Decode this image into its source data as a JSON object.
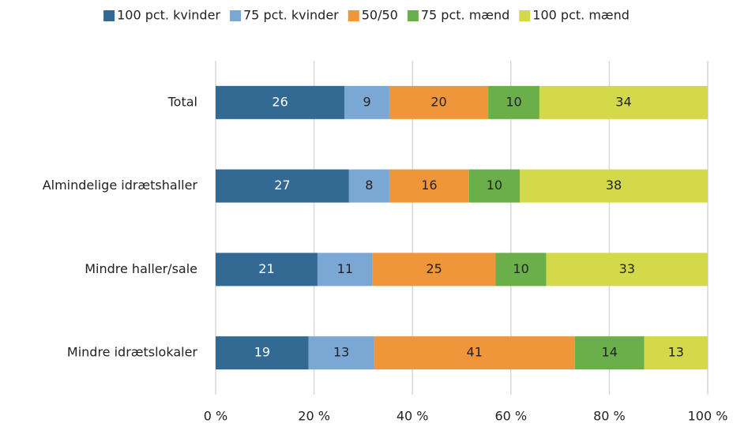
{
  "chart_data": {
    "type": "stacked_barh",
    "categories": [
      "Total",
      "Almindelige idrætshaller",
      "Mindre haller/sale",
      "Mindre idrætslokaler"
    ],
    "series": [
      {
        "name": "100 pct. kvinder",
        "color": "#336a94",
        "values": [
          26.2,
          27.1,
          20.7,
          18.9
        ],
        "value_labels": [
          "26",
          "27",
          "21",
          "19"
        ]
      },
      {
        "name": "75 pct. kvinder",
        "color": "#7ba7d4",
        "values": [
          9.1,
          8.2,
          11.2,
          13.3
        ],
        "value_labels": [
          "9",
          "8",
          "11",
          "13"
        ]
      },
      {
        "name": "50/50",
        "color": "#f0963a",
        "values": [
          20.1,
          16.2,
          25.0,
          40.8
        ],
        "value_labels": [
          "20",
          "16",
          "25",
          "41"
        ]
      },
      {
        "name": "75 pct. mænd",
        "color": "#6aaf4a",
        "values": [
          10.4,
          10.3,
          10.3,
          14.1
        ],
        "value_labels": [
          "10",
          "10",
          "10",
          "14"
        ]
      },
      {
        "name": "100 pct. mænd",
        "color": "#d4d94a",
        "values": [
          34.2,
          38.2,
          32.8,
          12.9
        ],
        "value_labels": [
          "34",
          "38",
          "33",
          "13"
        ]
      }
    ],
    "xlim": [
      0,
      100
    ],
    "xticks": [
      {
        "value": 0,
        "label": "0 %"
      },
      {
        "value": 20,
        "label": "20 %"
      },
      {
        "value": 40,
        "label": "40 %"
      },
      {
        "value": 60,
        "label": "60 %"
      },
      {
        "value": 80,
        "label": "80 %"
      },
      {
        "value": 100,
        "label": "100 %"
      }
    ],
    "grid": true,
    "legend": "top"
  }
}
